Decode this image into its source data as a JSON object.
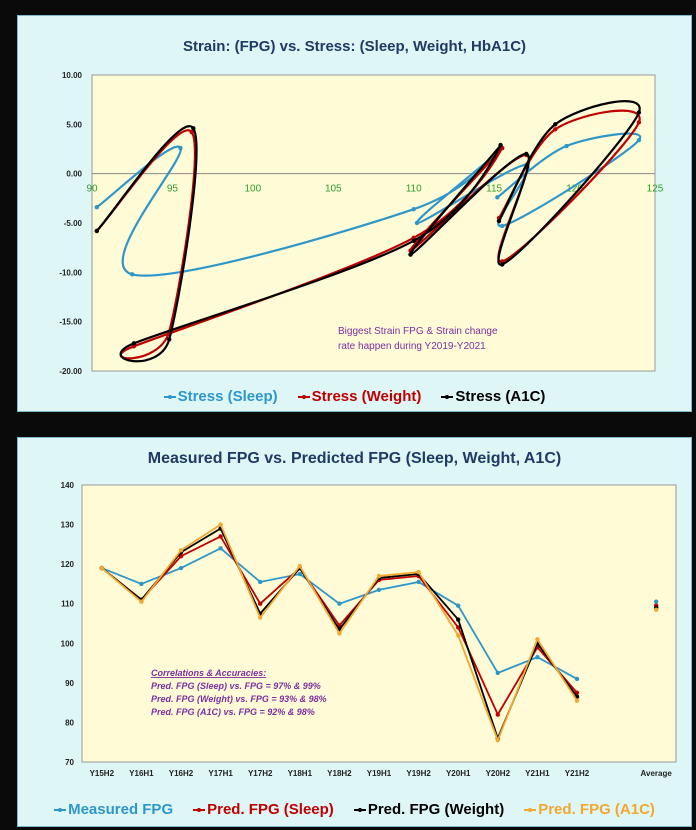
{
  "chart_data": [
    {
      "type": "line",
      "title": "Strain: (FPG) vs. Stress: (Sleep, Weight, HbA1C)",
      "xlabel": "",
      "ylabel": "",
      "xlim": [
        90,
        125
      ],
      "ylim": [
        -20,
        10
      ],
      "x_ticks": [
        "90",
        "95",
        "100",
        "105",
        "110",
        "115",
        "120",
        "125"
      ],
      "y_ticks": [
        "10.00",
        "5.00",
        "0.00",
        "-5.00",
        "-10.00",
        "-15.00",
        "-20.00"
      ],
      "annotation": [
        "Biggest Strain FPG & Strain change",
        "rate happen during Y2019-Y2021"
      ],
      "legend_position": "bottom",
      "series": [
        {
          "name": "Stress (Sleep)",
          "color": "#2e97c9",
          "points": [
            [
              90.3,
              -3.4
            ],
            [
              95.5,
              2.6
            ],
            [
              92.5,
              -10.2
            ],
            [
              110.0,
              -3.6
            ],
            [
              115.5,
              2.6
            ],
            [
              110.2,
              -5.0
            ],
            [
              117.0,
              0.9
            ],
            [
              115.5,
              -5.3
            ],
            [
              124.0,
              3.4
            ],
            [
              119.5,
              2.8
            ],
            [
              115.2,
              -2.4
            ]
          ]
        },
        {
          "name": "Stress (Weight)",
          "color": "#c00000",
          "points": [
            [
              90.3,
              -5.8
            ],
            [
              96.2,
              4.2
            ],
            [
              94.8,
              -16.0
            ],
            [
              92.6,
              -17.5
            ],
            [
              110.0,
              -6.5
            ],
            [
              115.5,
              2.6
            ],
            [
              109.8,
              -7.8
            ],
            [
              117.0,
              1.9
            ],
            [
              115.5,
              -8.9
            ],
            [
              124.0,
              5.2
            ],
            [
              118.8,
              4.5
            ],
            [
              115.3,
              -4.5
            ]
          ]
        },
        {
          "name": "Stress (A1C)",
          "color": "#000000",
          "points": [
            [
              90.3,
              -5.8
            ],
            [
              96.3,
              4.6
            ],
            [
              94.8,
              -16.8
            ],
            [
              92.6,
              -17.2
            ],
            [
              110.0,
              -6.8
            ],
            [
              115.4,
              2.9
            ],
            [
              109.8,
              -8.2
            ],
            [
              117.0,
              2.0
            ],
            [
              115.5,
              -9.2
            ],
            [
              124.0,
              6.2
            ],
            [
              118.8,
              5.0
            ],
            [
              115.3,
              -4.8
            ]
          ]
        }
      ]
    },
    {
      "type": "line",
      "title": "Measured FPG vs. Predicted FPG (Sleep, Weight, A1C)",
      "xlabel": "",
      "ylabel": "",
      "ylim": [
        70,
        140
      ],
      "y_ticks": [
        "140",
        "130",
        "120",
        "110",
        "100",
        "90",
        "80",
        "70"
      ],
      "categories": [
        "Y15H2",
        "Y16H1",
        "Y16H2",
        "Y17H1",
        "Y17H2",
        "Y18H1",
        "Y18H2",
        "Y19H1",
        "Y19H2",
        "Y20H1",
        "Y20H2",
        "Y21H1",
        "Y21H2",
        "",
        "Average"
      ],
      "annotation": [
        "Correlations & Accuracies:",
        "Pred. FPG (Sleep) vs. FPG = 97% & 99%",
        "Pred. FPG (Weight) vs. FPG = 93% & 98%",
        "Pred. FPG (A1C) vs. FPG = 92% & 98%"
      ],
      "legend_position": "bottom",
      "series": [
        {
          "name": "Measured FPG",
          "color": "#2e97c9",
          "values": [
            119,
            115,
            119,
            124,
            115.5,
            117.5,
            110,
            113.5,
            115.5,
            109.5,
            92.5,
            96.5,
            91,
            null,
            110.5
          ]
        },
        {
          "name": "Pred. FPG (Sleep)",
          "color": "#c00000",
          "values": [
            119,
            111,
            122,
            127,
            110,
            119,
            104.5,
            116,
            117,
            104,
            82,
            99,
            87.5,
            null,
            109.5
          ]
        },
        {
          "name": "Pred. FPG (Weight)",
          "color": "#000000",
          "values": [
            119,
            111,
            123,
            129,
            107.5,
            119,
            103.5,
            116.5,
            117.5,
            106,
            76,
            100,
            86.5,
            null,
            109
          ]
        },
        {
          "name": "Pred. FPG (A1C)",
          "color": "#f0a830",
          "values": [
            119,
            110.5,
            123.5,
            130,
            106.5,
            119.5,
            102.5,
            117,
            118,
            102,
            75.5,
            101,
            85.5,
            null,
            108.5
          ]
        }
      ]
    }
  ]
}
